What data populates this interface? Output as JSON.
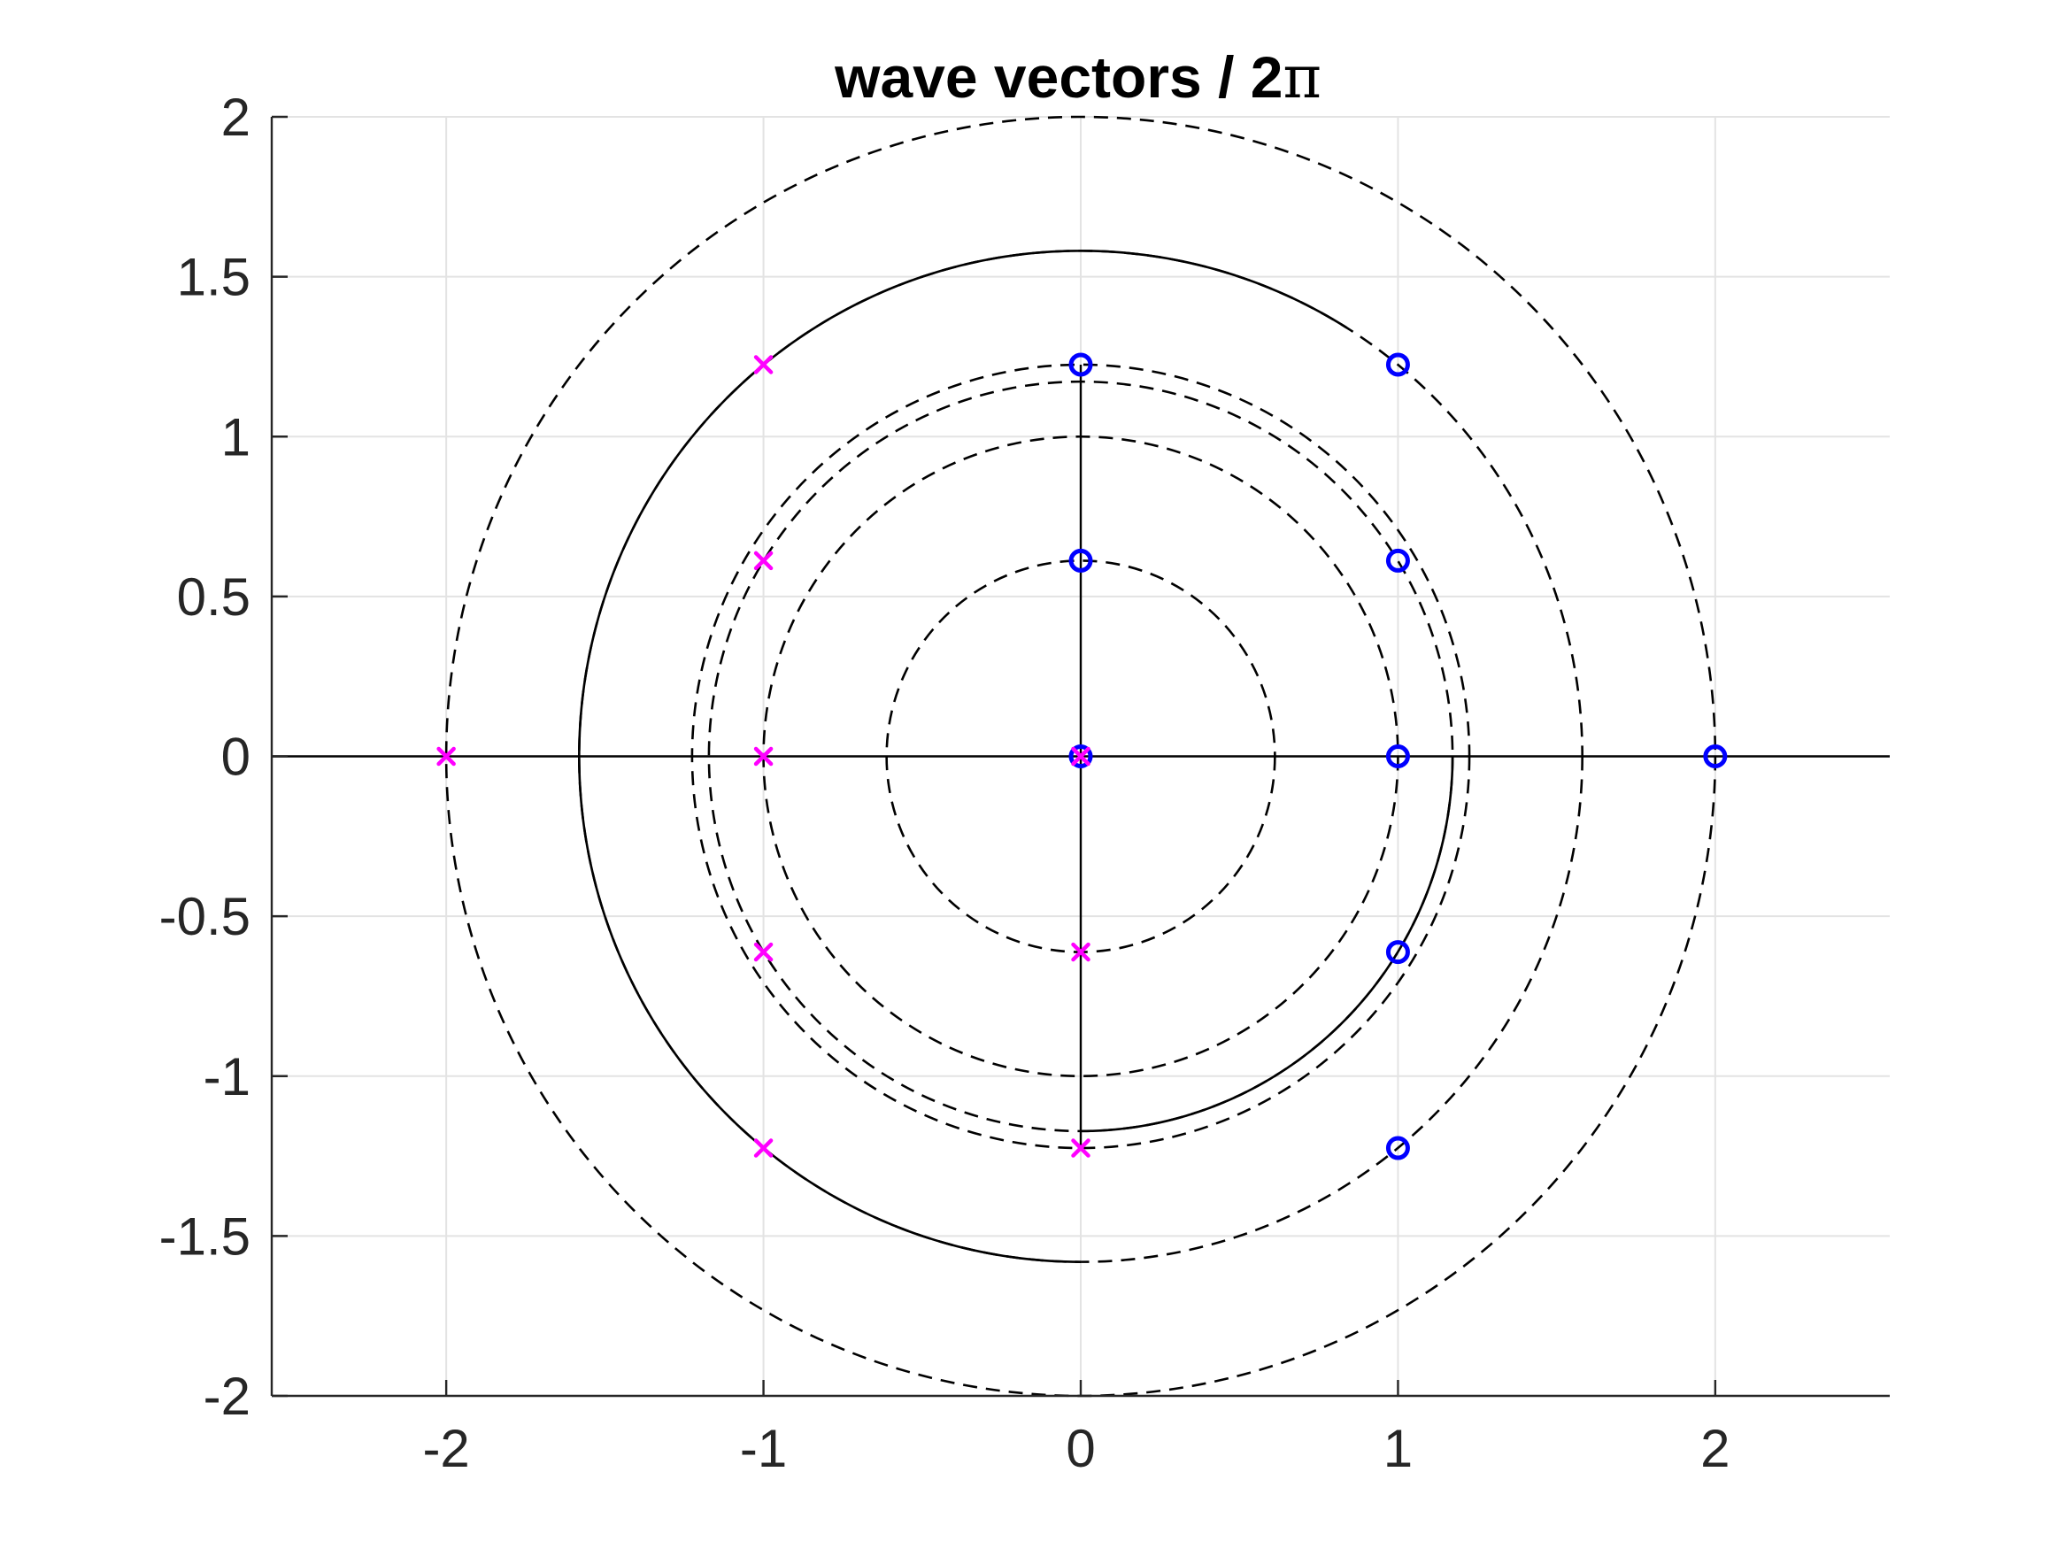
{
  "chart_data": {
    "type": "scatter",
    "title": "wave vectors / 2",
    "title_symbol": "π",
    "xlabel": "",
    "ylabel": "",
    "xlim": [
      -2.55,
      2.55
    ],
    "ylim": [
      -2,
      2
    ],
    "xticks": [
      -2,
      -1,
      0,
      1,
      2
    ],
    "xtick_labels": [
      "-2",
      "-1",
      "0",
      "1",
      "2"
    ],
    "yticks": [
      2,
      1.5,
      1,
      0.5,
      0,
      -0.5,
      -1,
      -1.5,
      -2
    ],
    "ytick_labels": [
      "2",
      "1.5",
      "1",
      "0.5",
      "0",
      "-0.5",
      "-1",
      "-1.5",
      "-2"
    ],
    "grid": true,
    "legend": "none",
    "colors": {
      "circle_markers": "#0000ff",
      "cross_markers": "#ff00ff",
      "lines": "#000000",
      "grid": "#e3e3e3",
      "axes": "#262626"
    },
    "series": [
      {
        "marker": "o",
        "color": "#0000ff",
        "points": [
          [
            0,
            0
          ],
          [
            0,
            0.612
          ],
          [
            0,
            1.225
          ],
          [
            1,
            1.225
          ],
          [
            1,
            0.612
          ],
          [
            1,
            0
          ],
          [
            2,
            0
          ],
          [
            1,
            -0.612
          ],
          [
            1,
            -1.225
          ]
        ]
      },
      {
        "marker": "x",
        "color": "#ff00ff",
        "points": [
          [
            -2,
            0
          ],
          [
            -1,
            1.225
          ],
          [
            -1,
            0.612
          ],
          [
            -1,
            0
          ],
          [
            -1,
            -0.612
          ],
          [
            -1,
            -1.225
          ],
          [
            0,
            -0.612
          ],
          [
            0,
            -1.225
          ],
          [
            0,
            0
          ]
        ]
      }
    ],
    "dashed_circles": [
      {
        "cx": 0,
        "cy": 0,
        "r": 0.612
      },
      {
        "cx": 0,
        "cy": 0,
        "r": 1
      },
      {
        "cx": 0,
        "cy": 0,
        "r": 1.172
      },
      {
        "cx": 0,
        "cy": 0,
        "r": 1.225
      },
      {
        "cx": 0,
        "cy": 0,
        "r": 1.581
      },
      {
        "cx": 0,
        "cy": 0,
        "r": 2
      }
    ],
    "solid_arcs": [
      {
        "cx": 0,
        "cy": 0,
        "r": 1.581,
        "from_deg": 58,
        "to_deg": 270
      },
      {
        "cx": 0,
        "cy": 0,
        "r": 1.172,
        "from_deg": 270,
        "to_deg": 360
      }
    ],
    "solid_lines": [
      {
        "x1": -2.55,
        "y1": 0,
        "x2": 2.55,
        "y2": 0
      },
      {
        "x1": 0,
        "y1": -1.225,
        "x2": 0,
        "y2": 1.225
      }
    ]
  }
}
